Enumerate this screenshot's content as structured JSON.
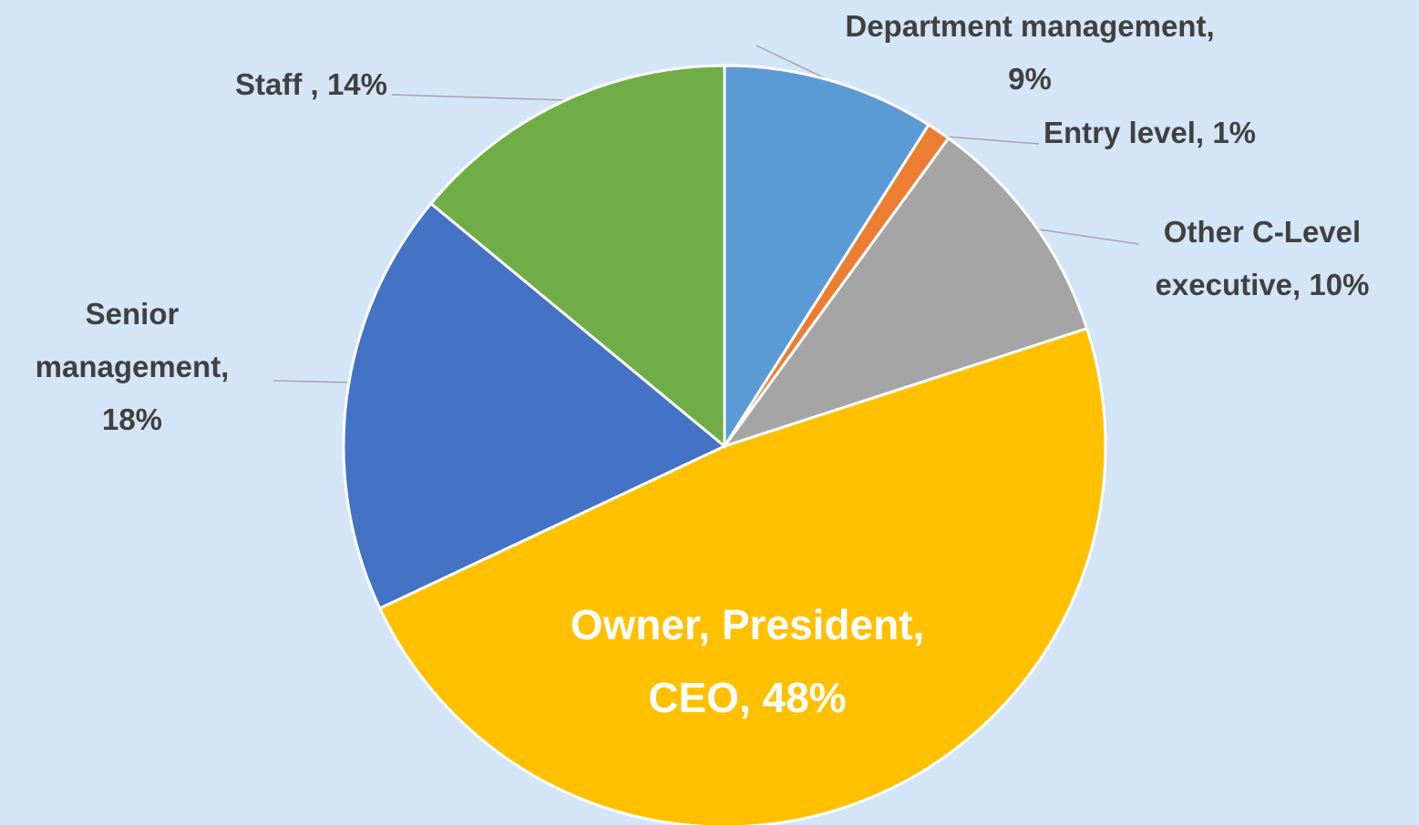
{
  "chart_data": {
    "type": "pie",
    "categories": [
      "Department management,",
      "Entry level,",
      "Other C-Level executive,",
      "Owner, President, CEO,",
      "Senior management,",
      "Staff ,"
    ],
    "values": [
      9,
      1,
      10,
      48,
      18,
      14
    ],
    "value_labels": [
      "9%",
      "1%",
      "10%",
      "48%",
      "18%",
      "14%"
    ],
    "colors": [
      "#5b9bd5",
      "#ed7d31",
      "#a5a5a5",
      "#ffc000",
      "#4472c4",
      "#70ad47"
    ]
  }
}
